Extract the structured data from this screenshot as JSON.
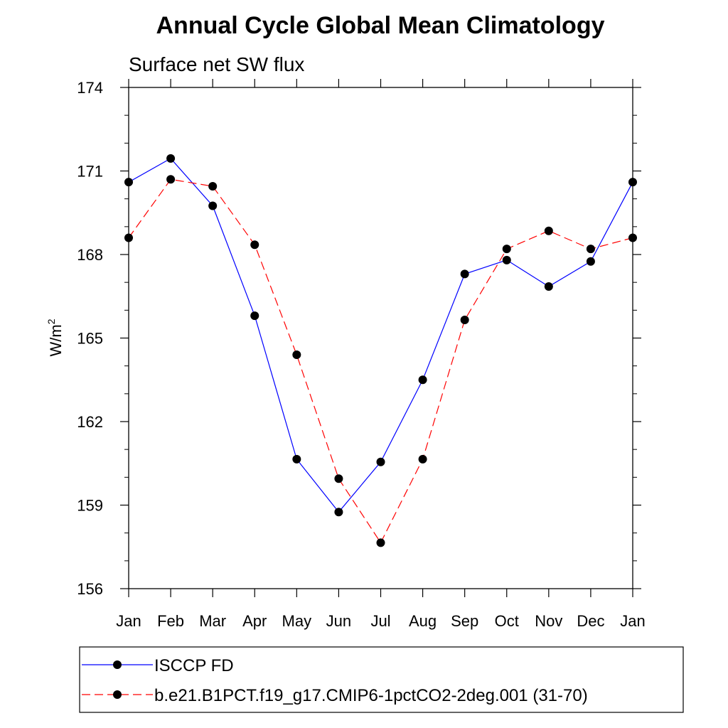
{
  "chart_data": {
    "type": "line",
    "title": "Annual Cycle Global Mean Climatology",
    "subtitle": "Surface net SW flux",
    "ylabel_base": "W/m",
    "ylabel_sup": "2",
    "ylim": [
      156,
      174
    ],
    "yticks": [
      156,
      159,
      162,
      165,
      168,
      171,
      174
    ],
    "categories": [
      "Jan",
      "Feb",
      "Mar",
      "Apr",
      "May",
      "Jun",
      "Jul",
      "Aug",
      "Sep",
      "Oct",
      "Nov",
      "Dec",
      "Jan"
    ],
    "series": [
      {
        "name": "ISCCP FD",
        "color": "#0000ff",
        "dash": "solid",
        "values": [
          170.6,
          171.45,
          169.75,
          165.8,
          160.65,
          158.75,
          160.55,
          163.5,
          167.3,
          167.8,
          166.85,
          167.75,
          170.6
        ]
      },
      {
        "name": "b.e21.B1PCT.f19_g17.CMIP6-1pctCO2-2deg.001 (31-70)",
        "color": "#ff0000",
        "dash": "dashed",
        "values": [
          168.6,
          170.7,
          170.45,
          168.35,
          164.4,
          159.95,
          157.65,
          160.65,
          165.65,
          168.2,
          168.85,
          168.2,
          168.6
        ]
      }
    ],
    "legend_position": "bottom"
  }
}
